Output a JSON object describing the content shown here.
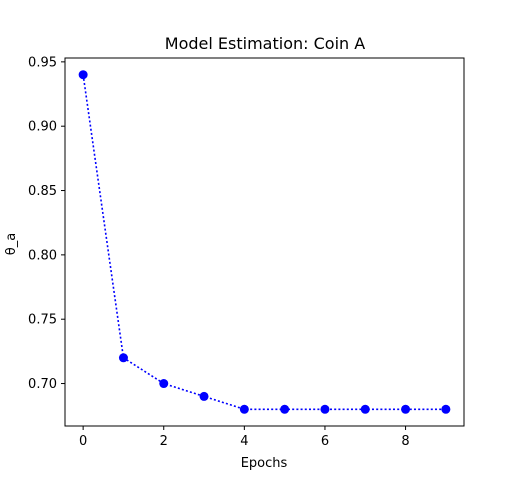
{
  "chart_data": {
    "type": "line",
    "title": "Model Estimation: Coin A",
    "xlabel": "Epochs",
    "ylabel": "θ_a",
    "x": [
      0,
      1,
      2,
      3,
      4,
      5,
      6,
      7,
      8,
      9
    ],
    "series": [
      {
        "values": [
          0.94,
          0.72,
          0.7,
          0.69,
          0.68,
          0.68,
          0.68,
          0.68,
          0.68,
          0.68
        ],
        "color": "#0000ff",
        "line_style": "dotted",
        "marker": "circle"
      }
    ],
    "xlim": [
      -0.45,
      9.45
    ],
    "ylim": [
      0.667,
      0.953
    ],
    "xticks": [
      0,
      2,
      4,
      6,
      8
    ],
    "xtick_labels": [
      "0",
      "2",
      "4",
      "6",
      "8"
    ],
    "yticks": [
      0.7,
      0.75,
      0.8,
      0.85,
      0.9,
      0.95
    ],
    "ytick_labels": [
      "0.70",
      "0.75",
      "0.80",
      "0.85",
      "0.90",
      "0.95"
    ],
    "grid": false,
    "legend": false
  }
}
